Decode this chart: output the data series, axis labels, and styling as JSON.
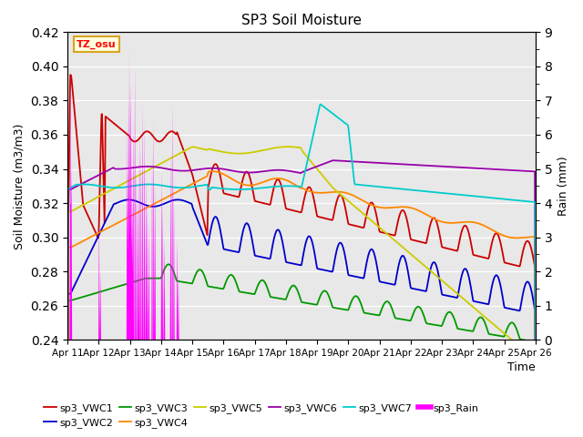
{
  "title": "SP3 Soil Moisture",
  "xlabel": "Time",
  "ylabel_left": "Soil Moisture (m3/m3)",
  "ylabel_right": "Rain (mm)",
  "ylim_left": [
    0.24,
    0.42
  ],
  "ylim_right": [
    0.0,
    9.0
  ],
  "yticks_left": [
    0.24,
    0.26,
    0.28,
    0.3,
    0.32,
    0.34,
    0.36,
    0.38,
    0.4,
    0.42
  ],
  "yticks_right": [
    0.0,
    1.0,
    2.0,
    3.0,
    4.0,
    5.0,
    6.0,
    7.0,
    8.0,
    9.0
  ],
  "xtick_labels": [
    "Apr 11",
    "Apr 12",
    "Apr 13",
    "Apr 14",
    "Apr 15",
    "Apr 16",
    "Apr 17",
    "Apr 18",
    "Apr 19",
    "Apr 20",
    "Apr 21",
    "Apr 22",
    "Apr 23",
    "Apr 24",
    "Apr 25",
    "Apr 26"
  ],
  "annotation_text": "TZ_osu",
  "line_colors": {
    "sp3_VWC1": "#cc0000",
    "sp3_VWC2": "#0000cc",
    "sp3_VWC3": "#009900",
    "sp3_VWC4": "#ff8800",
    "sp3_VWC5": "#cccc00",
    "sp3_VWC6": "#9900aa",
    "sp3_VWC7": "#00cccc",
    "sp3_Rain": "#ff00ff"
  },
  "legend_entries": [
    "sp3_VWC1",
    "sp3_VWC2",
    "sp3_VWC3",
    "sp3_VWC4",
    "sp3_VWC5",
    "sp3_VWC6",
    "sp3_VWC7",
    "sp3_Rain"
  ],
  "background_color": "#e8e8e8",
  "grid_color": "#ffffff"
}
